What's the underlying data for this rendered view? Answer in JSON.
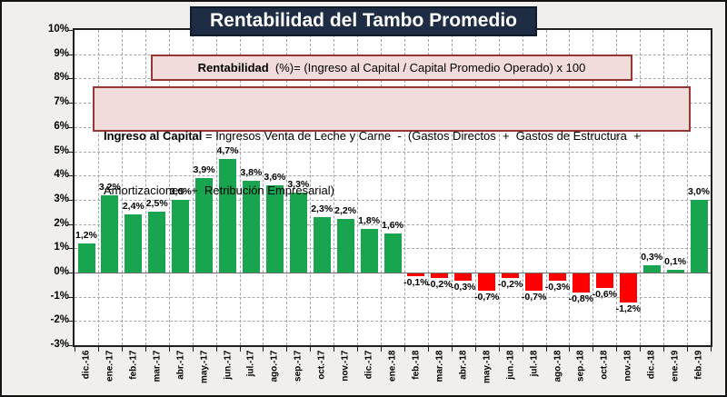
{
  "title": "Rentabilidad del Tambo Promedio",
  "formula1": {
    "bold": "Rentabilidad",
    "rest": "  (%)= (Ingreso al Capital / Capital Promedio Operado) x 100"
  },
  "formula2": {
    "bold": "Ingreso al Capital",
    "rest": " = Ingresos Venta de Leche y Carne  -  (Gastos Directos  +  Gastos de Estructura  +",
    "line2": "Amortizaciones  +  Retribución Empresarial)"
  },
  "colors": {
    "positive": "#19A550",
    "negative": "#FF0000",
    "grid": "#A6A6A6",
    "zero_line": "#6E6E6E",
    "plot_border": "#1F1F1F",
    "plot_bg": "#FFFFFF",
    "title_bg": "#1E2C44",
    "box_fill": "#F2DCDB",
    "box_border": "#953735",
    "background": "#F0EFEC"
  },
  "chart_data": {
    "type": "bar",
    "title": "Rentabilidad del Tambo Promedio",
    "xlabel": "",
    "ylabel": "",
    "ylim": [
      -3,
      10
    ],
    "grid": "dashed",
    "legend_position": "none",
    "categories": [
      "dic.-16",
      "ene.-17",
      "feb.-17",
      "mar.-17",
      "abr.-17",
      "may.-17",
      "jun.-17",
      "jul.-17",
      "ago.-17",
      "sep.-17",
      "oct.-17",
      "nov.-17",
      "dic.-17",
      "ene.-18",
      "feb.-18",
      "mar.-18",
      "abr.-18",
      "may.-18",
      "jun.-18",
      "jul.-18",
      "ago.-18",
      "sep.-18",
      "oct.-18",
      "nov.-18",
      "dic.-18",
      "ene.-19",
      "feb.-19"
    ],
    "values": [
      1.2,
      3.2,
      2.4,
      2.5,
      3.0,
      3.9,
      4.7,
      3.8,
      3.6,
      3.3,
      2.3,
      2.2,
      1.8,
      1.6,
      -0.1,
      -0.2,
      -0.3,
      -0.7,
      -0.2,
      -0.7,
      -0.3,
      -0.8,
      -0.6,
      -1.2,
      0.3,
      0.1,
      3.0
    ],
    "value_labels": [
      "1,2%",
      "3,2%",
      "2,4%",
      "2,5%",
      "3,0%",
      "3,9%",
      "4,7%",
      "3,8%",
      "3,6%",
      "3,3%",
      "2,3%",
      "2,2%",
      "1,8%",
      "1,6%",
      "-0,1%",
      "-0,2%",
      "-0,3%",
      "-0,7%",
      "-0,2%",
      "-0,7%",
      "-0,3%",
      "-0,8%",
      "-0,6%",
      "-1,2%",
      "0,3%",
      "0,1%",
      "3,0%"
    ],
    "yticks": [
      {
        "v": 10,
        "label": "10%"
      },
      {
        "v": 9,
        "label": "9%"
      },
      {
        "v": 8,
        "label": "8%"
      },
      {
        "v": 7,
        "label": "7%"
      },
      {
        "v": 6,
        "label": "6%"
      },
      {
        "v": 5,
        "label": "5%"
      },
      {
        "v": 4,
        "label": "4%"
      },
      {
        "v": 3,
        "label": "3%"
      },
      {
        "v": 2,
        "label": "2%"
      },
      {
        "v": 1,
        "label": "1%"
      },
      {
        "v": 0,
        "label": "0%"
      },
      {
        "v": -1,
        "label": "-1%"
      },
      {
        "v": -2,
        "label": "-2%"
      },
      {
        "v": -3,
        "label": "-3%"
      }
    ]
  }
}
